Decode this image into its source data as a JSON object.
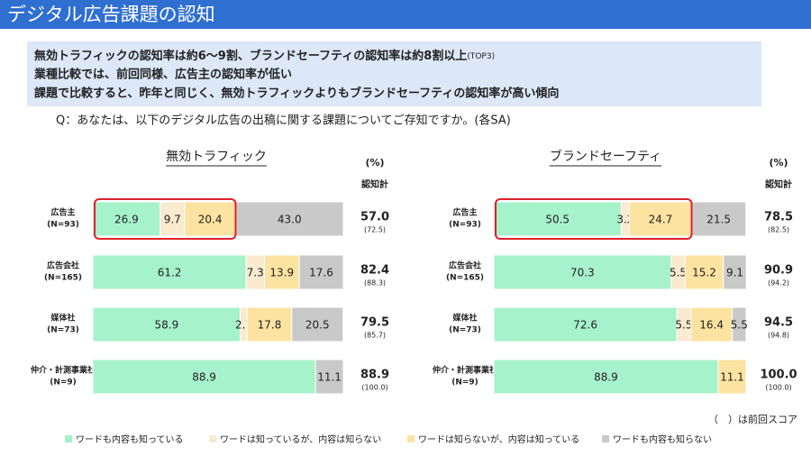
{
  "header": {
    "title": "デジタル広告課題の認知"
  },
  "summary": {
    "lines": [
      "無効トラフィックの認知率は約6～9割、ブランドセーフティの認知率は約8割以上",
      "業種比較では、前回同様、広告主の認知率が低い",
      "課題で比較すると、昨年と同じく、無効トラフィックよりもブランドセーフティの認知率が高い傾向"
    ],
    "note": "(TOP3)"
  },
  "question": "Q：あなたは、以下のデジタル広告の出稿に関する課題についてご存知ですか。(各SA)",
  "footnote": "（　）は前回スコア",
  "chart_data": [
    {
      "type": "stacked-bar",
      "title": "無効トラフィック",
      "unit_label": "(%)",
      "total_label": "認知計",
      "xlim": [
        0,
        100
      ],
      "categories": [
        "広告主",
        "広告会社",
        "媒体社",
        "仲介・計測事業社"
      ],
      "sample_sizes": [
        "(N=93)",
        "(N=165)",
        "(N=73)",
        "(N=9)"
      ],
      "series": [
        {
          "name": "ワードも内容も知っている",
          "color": "#a6f2cb",
          "values": [
            26.9,
            61.2,
            58.9,
            88.9
          ]
        },
        {
          "name": "ワードは知っているが、内容は知らない",
          "color": "#f9ead0",
          "values": [
            9.7,
            7.3,
            2.7,
            null
          ]
        },
        {
          "name": "ワードは知らないが、内容は知っている",
          "color": "#fde3a1",
          "values": [
            20.4,
            13.9,
            17.8,
            null
          ]
        },
        {
          "name": "ワードも内容も知らない",
          "color": "#c9c9c9",
          "values": [
            43.0,
            17.6,
            20.5,
            11.1
          ],
          "value_labels": [
            "43.0",
            "17.6",
            "20.5",
            "11.1"
          ]
        }
      ],
      "totals": {
        "values": [
          57.0,
          82.4,
          79.5,
          88.9
        ],
        "value_labels": [
          "57.0",
          "82.4",
          "79.5",
          "88.9"
        ]
      },
      "previous": {
        "values": [
          72.5,
          88.3,
          85.7,
          100.0
        ],
        "value_labels": [
          "(72.5)",
          "(88.3)",
          "(85.7)",
          "(100.0)"
        ]
      }
    },
    {
      "type": "stacked-bar",
      "title": "ブランドセーフティ",
      "unit_label": "(%)",
      "total_label": "認知計",
      "xlim": [
        0,
        100
      ],
      "categories": [
        "広告主",
        "広告会社",
        "媒体社",
        "仲介・計測事業社"
      ],
      "sample_sizes": [
        "(N=93)",
        "(N=165)",
        "(N=73)",
        "(N=9)"
      ],
      "series": [
        {
          "color": "#a6f2cb",
          "values": [
            50.5,
            70.3,
            72.6,
            88.9
          ]
        },
        {
          "color": "#f9ead0",
          "values": [
            3.2,
            5.5,
            5.5,
            null
          ]
        },
        {
          "color": "#fde3a1",
          "values": [
            24.7,
            15.2,
            16.4,
            11.1
          ]
        },
        {
          "color": "#c9c9c9",
          "values": [
            21.5,
            9.1,
            5.5,
            null
          ]
        }
      ],
      "totals": {
        "values": [
          78.5,
          90.9,
          94.5,
          100.0
        ],
        "value_labels": [
          "78.5",
          "90.9",
          "94.5",
          "100.0"
        ]
      },
      "previous": {
        "values": [
          82.5,
          94.2,
          94.8,
          100.0
        ],
        "value_labels": [
          "(82.5)",
          "(94.2)",
          "(94.8)",
          "(100.0)"
        ]
      }
    }
  ]
}
